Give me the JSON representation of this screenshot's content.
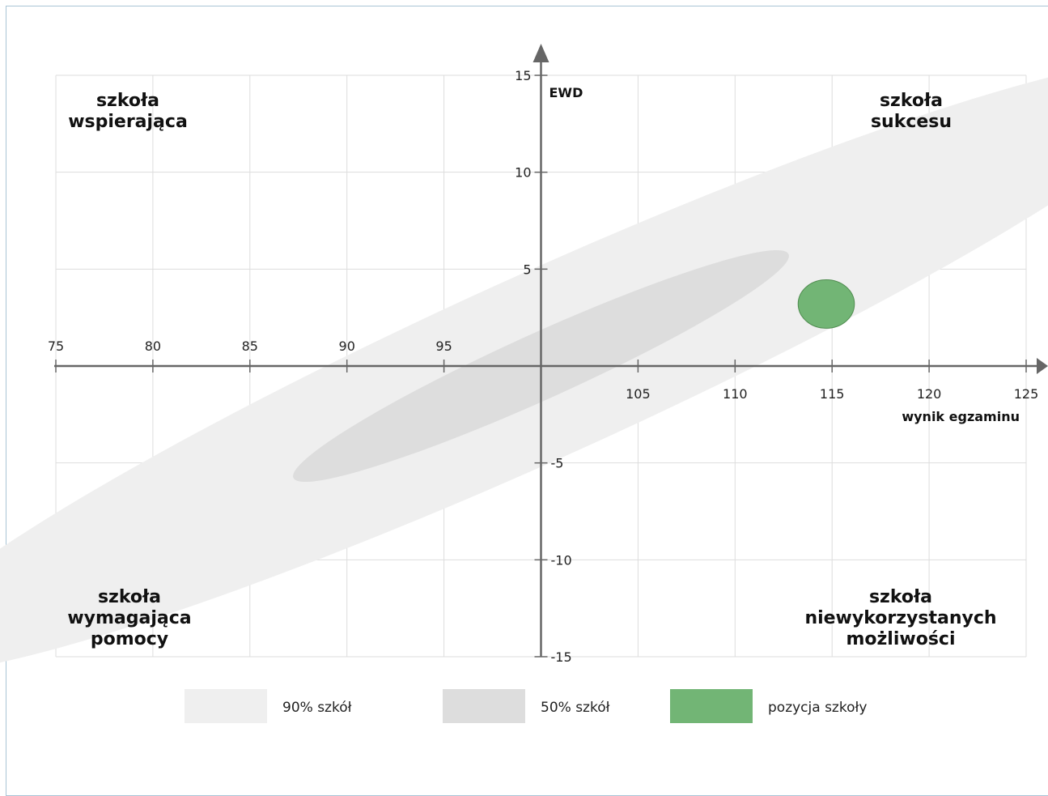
{
  "chart_data": {
    "type": "scatter",
    "title": "",
    "xlabel": "wynik egzaminu",
    "ylabel": "EWD",
    "xlim": [
      75,
      125
    ],
    "ylim": [
      -15,
      15
    ],
    "x_ticks": [
      75,
      80,
      85,
      90,
      95,
      105,
      110,
      115,
      120,
      125
    ],
    "y_ticks": [
      15,
      10,
      5,
      -5,
      -10,
      -15
    ],
    "grid": true,
    "quadrants": {
      "top_left": [
        "szkoła",
        "wspierająca"
      ],
      "top_right": [
        "szkoła",
        "sukcesu"
      ],
      "bottom_left": [
        "szkoła",
        "wymagająca",
        "pomocy"
      ],
      "bottom_right": [
        "szkoła",
        "niewykorzystanych",
        "możliwości"
      ]
    },
    "regions": [
      {
        "name": "90% szkół",
        "type": "ellipse",
        "center": [
          100,
          0
        ],
        "radius_x": 37,
        "radius_y": 4.75,
        "rotation_deg": 24.3,
        "color": "#efefef"
      },
      {
        "name": "50% szkół",
        "type": "ellipse",
        "center": [
          100,
          0
        ],
        "radius_x": 14,
        "radius_y": 1.7,
        "rotation_deg": 24.3,
        "color": "#dddddd"
      },
      {
        "name": "pozycja szkoły",
        "type": "ellipse",
        "center": [
          114.7,
          3.2
        ],
        "radius_x": 1.45,
        "radius_y": 1.25,
        "rotation_deg": 0,
        "color": "#72b575",
        "stroke": "#4e8b4e"
      }
    ],
    "legend": {
      "placement": "bottom",
      "items": [
        {
          "label": "90% szkół",
          "color": "#efefef"
        },
        {
          "label": "50% szkół",
          "color": "#dddddd"
        },
        {
          "label": "pozycja szkoły",
          "color": "#72b575"
        }
      ]
    },
    "colors": {
      "grid": "#dddddd",
      "axis": "#666666"
    }
  }
}
